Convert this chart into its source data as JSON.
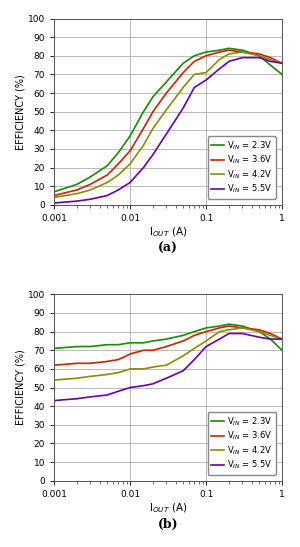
{
  "colors": {
    "green": "#1a8a00",
    "red": "#cc2200",
    "olive": "#8b8b00",
    "purple": "#6600aa"
  },
  "legend_labels": [
    "V$_{IN}$ = 2.3V",
    "V$_{IN}$ = 3.6V",
    "V$_{IN}$ = 4.2V",
    "V$_{IN}$ = 5.5V"
  ],
  "xlabel": "I$_{OUT}$ (A)",
  "ylabel": "EFFICIENCY (%)",
  "ylim": [
    0,
    100
  ],
  "xlim": [
    0.001,
    1
  ],
  "label_a": "(a)",
  "label_b": "(b)",
  "pwm": {
    "green": {
      "x": [
        0.001,
        0.002,
        0.003,
        0.005,
        0.007,
        0.01,
        0.015,
        0.02,
        0.03,
        0.05,
        0.07,
        0.1,
        0.15,
        0.2,
        0.3,
        0.5,
        0.7,
        1.0
      ],
      "y": [
        7,
        11,
        15,
        21,
        28,
        37,
        50,
        58,
        66,
        76,
        80,
        82,
        83,
        84,
        83,
        80,
        75,
        70
      ]
    },
    "red": {
      "x": [
        0.001,
        0.002,
        0.003,
        0.005,
        0.007,
        0.01,
        0.015,
        0.02,
        0.03,
        0.05,
        0.07,
        0.1,
        0.15,
        0.2,
        0.3,
        0.5,
        0.7,
        1.0
      ],
      "y": [
        5,
        8,
        11,
        16,
        22,
        29,
        41,
        50,
        60,
        71,
        77,
        80,
        82,
        83,
        82,
        81,
        79,
        76
      ]
    },
    "olive": {
      "x": [
        0.001,
        0.002,
        0.003,
        0.005,
        0.007,
        0.01,
        0.015,
        0.02,
        0.03,
        0.05,
        0.07,
        0.1,
        0.15,
        0.2,
        0.3,
        0.5,
        0.7,
        1.0
      ],
      "y": [
        4,
        6,
        8,
        12,
        16,
        22,
        32,
        41,
        51,
        63,
        70,
        71,
        78,
        81,
        82,
        80,
        78,
        76
      ]
    },
    "purple": {
      "x": [
        0.001,
        0.002,
        0.003,
        0.005,
        0.007,
        0.01,
        0.015,
        0.02,
        0.03,
        0.05,
        0.07,
        0.1,
        0.15,
        0.2,
        0.3,
        0.5,
        0.7,
        1.0
      ],
      "y": [
        1,
        2,
        3,
        5,
        8,
        12,
        20,
        27,
        38,
        52,
        63,
        67,
        73,
        77,
        79,
        79,
        77,
        76
      ]
    }
  },
  "psm": {
    "green": {
      "x": [
        0.001,
        0.002,
        0.003,
        0.005,
        0.007,
        0.01,
        0.015,
        0.02,
        0.03,
        0.05,
        0.07,
        0.1,
        0.15,
        0.2,
        0.3,
        0.5,
        0.7,
        1.0
      ],
      "y": [
        71,
        72,
        72,
        73,
        73,
        74,
        74,
        75,
        76,
        78,
        80,
        82,
        83,
        84,
        83,
        80,
        76,
        70
      ]
    },
    "red": {
      "x": [
        0.001,
        0.002,
        0.003,
        0.005,
        0.007,
        0.01,
        0.015,
        0.02,
        0.03,
        0.05,
        0.07,
        0.1,
        0.15,
        0.2,
        0.3,
        0.5,
        0.7,
        1.0
      ],
      "y": [
        62,
        63,
        63,
        64,
        65,
        68,
        70,
        70,
        72,
        75,
        78,
        80,
        82,
        83,
        82,
        81,
        79,
        76
      ]
    },
    "olive": {
      "x": [
        0.001,
        0.002,
        0.003,
        0.005,
        0.007,
        0.01,
        0.015,
        0.02,
        0.03,
        0.05,
        0.07,
        0.1,
        0.15,
        0.2,
        0.3,
        0.5,
        0.7,
        1.0
      ],
      "y": [
        54,
        55,
        56,
        57,
        58,
        60,
        60,
        61,
        62,
        67,
        71,
        75,
        80,
        81,
        82,
        80,
        78,
        76
      ]
    },
    "purple": {
      "x": [
        0.001,
        0.002,
        0.003,
        0.005,
        0.007,
        0.01,
        0.015,
        0.02,
        0.03,
        0.05,
        0.07,
        0.1,
        0.15,
        0.2,
        0.3,
        0.5,
        0.7,
        1.0
      ],
      "y": [
        43,
        44,
        45,
        46,
        48,
        50,
        51,
        52,
        55,
        59,
        65,
        72,
        76,
        79,
        79,
        77,
        76,
        76
      ]
    }
  }
}
